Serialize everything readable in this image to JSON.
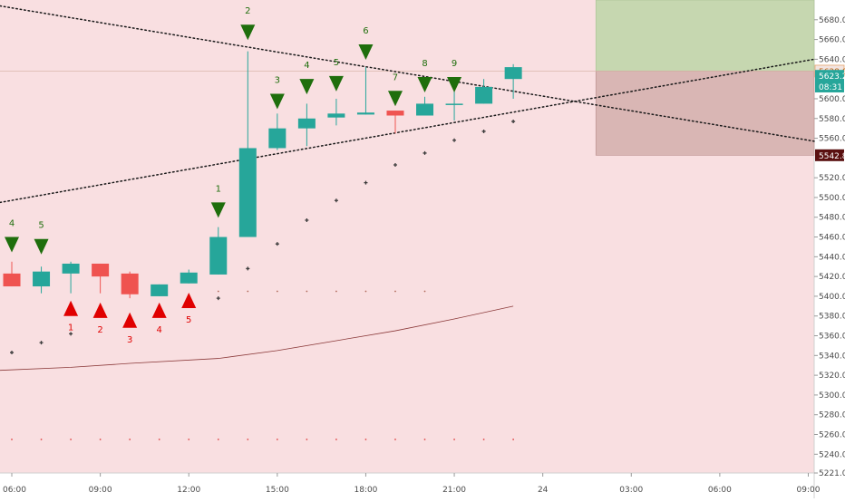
{
  "chart_data": {
    "type": "candlestick",
    "title": "",
    "xlabel": "",
    "ylabel": "",
    "colors": {
      "background": "#f9dfe1",
      "up": "#26a69a",
      "down": "#ef5350",
      "buy_zone": "#c6d7b0",
      "sell_zone": "#d9b6b4",
      "moving_average": "#8b3a3a",
      "trendline": "#1a1a1a",
      "sell_arrow": "#1f6e0c",
      "buy_arrow": "#e00000",
      "dot": "#3a3a3a"
    },
    "y_axis": {
      "range": [
        5221,
        5700
      ],
      "ticks": [
        "5680.0",
        "5660.0",
        "5640.0",
        "5600.0",
        "5580.0",
        "5560.0",
        "5520.0",
        "5500.0",
        "5480.0",
        "5460.0",
        "5440.0",
        "5420.0",
        "5400.0",
        "5380.0",
        "5360.0",
        "5340.0",
        "5320.0",
        "5300.0",
        "5280.0",
        "5260.0",
        "5240.0",
        "5221.0"
      ],
      "tick_values": [
        5680,
        5660,
        5640,
        5600,
        5580,
        5560,
        5520,
        5500,
        5480,
        5460,
        5440,
        5420,
        5400,
        5380,
        5360,
        5340,
        5320,
        5300,
        5280,
        5260,
        5240,
        5221
      ]
    },
    "x_axis": {
      "range": [
        5.6,
        33.2
      ],
      "ticks": [
        "06:00",
        "09:00",
        "12:00",
        "15:00",
        "18:00",
        "21:00",
        "24",
        "03:00",
        "06:00",
        "09:00"
      ],
      "tick_values": [
        6,
        9,
        12,
        15,
        18,
        21,
        24,
        27,
        30,
        33
      ]
    },
    "candles": [
      {
        "t": 6,
        "open": 5423,
        "high": 5435,
        "low": 5410,
        "close": 5410
      },
      {
        "t": 7,
        "open": 5410,
        "high": 5430,
        "low": 5403,
        "close": 5425
      },
      {
        "t": 8,
        "open": 5423,
        "high": 5435,
        "low": 5403,
        "close": 5433
      },
      {
        "t": 9,
        "open": 5433,
        "high": 5433,
        "low": 5403,
        "close": 5420
      },
      {
        "t": 10,
        "open": 5423,
        "high": 5425,
        "low": 5398,
        "close": 5402
      },
      {
        "t": 11,
        "open": 5400,
        "high": 5412,
        "low": 5400,
        "close": 5412
      },
      {
        "t": 12,
        "open": 5413,
        "high": 5427,
        "low": 5413,
        "close": 5424
      },
      {
        "t": 13,
        "open": 5422,
        "high": 5470,
        "low": 5422,
        "close": 5460
      },
      {
        "t": 14,
        "open": 5460,
        "high": 5648,
        "low": 5460,
        "close": 5550
      },
      {
        "t": 15,
        "open": 5550,
        "high": 5585,
        "low": 5548,
        "close": 5570
      },
      {
        "t": 16,
        "open": 5570,
        "high": 5595,
        "low": 5552,
        "close": 5580
      },
      {
        "t": 17,
        "open": 5581,
        "high": 5600,
        "low": 5573,
        "close": 5585
      },
      {
        "t": 18,
        "open": 5584,
        "high": 5632,
        "low": 5584,
        "close": 5586
      },
      {
        "t": 19,
        "open": 5588,
        "high": 5588,
        "low": 5565,
        "close": 5583
      },
      {
        "t": 20,
        "open": 5583,
        "high": 5602,
        "low": 5583,
        "close": 5595
      },
      {
        "t": 21,
        "open": 5594,
        "high": 5613,
        "low": 5578,
        "close": 5595
      },
      {
        "t": 22,
        "open": 5595,
        "high": 5620,
        "low": 5595,
        "close": 5612
      },
      {
        "t": 23,
        "open": 5620,
        "high": 5635,
        "low": 5600,
        "close": 5632
      }
    ],
    "sell_signals": [
      {
        "t": 6,
        "label": "4",
        "y": 5460
      },
      {
        "t": 7,
        "label": "5",
        "y": 5458
      },
      {
        "t": 13,
        "label": "1",
        "y": 5495
      },
      {
        "t": 14,
        "label": "2",
        "y": 5675
      },
      {
        "t": 15,
        "label": "3",
        "y": 5605
      },
      {
        "t": 16,
        "label": "4",
        "y": 5620
      },
      {
        "t": 17,
        "label": "5",
        "y": 5623
      },
      {
        "t": 18,
        "label": "6",
        "y": 5655
      },
      {
        "t": 19,
        "label": "7",
        "y": 5608
      },
      {
        "t": 20,
        "label": "8",
        "y": 5622
      },
      {
        "t": 21,
        "label": "9",
        "y": 5622
      }
    ],
    "buy_signals": [
      {
        "t": 8,
        "label": "1",
        "y": 5380
      },
      {
        "t": 9,
        "label": "2",
        "y": 5378
      },
      {
        "t": 10,
        "label": "3",
        "y": 5368
      },
      {
        "t": 11,
        "label": "4",
        "y": 5378
      },
      {
        "t": 12,
        "label": "5",
        "y": 5388
      }
    ],
    "dots": [
      {
        "t": 6,
        "y": 5343
      },
      {
        "t": 7,
        "y": 5353
      },
      {
        "t": 8,
        "y": 5362
      },
      {
        "t": 10,
        "y": 5377
      },
      {
        "t": 11,
        "y": 5383
      },
      {
        "t": 12,
        "y": 5390
      },
      {
        "t": 13,
        "y": 5398
      },
      {
        "t": 14,
        "y": 5428
      },
      {
        "t": 15,
        "y": 5453
      },
      {
        "t": 16,
        "y": 5477
      },
      {
        "t": 17,
        "y": 5497
      },
      {
        "t": 18,
        "y": 5515
      },
      {
        "t": 19,
        "y": 5533
      },
      {
        "t": 20,
        "y": 5545
      },
      {
        "t": 21,
        "y": 5558
      },
      {
        "t": 22,
        "y": 5567
      },
      {
        "t": 23,
        "y": 5577
      }
    ],
    "bottom_dots": [
      6,
      7,
      8,
      9,
      10,
      11,
      12,
      13,
      14,
      15,
      16,
      17,
      18,
      19,
      20,
      21,
      22,
      23
    ],
    "bottom_dots_y": 5255,
    "mid_dots": [
      13,
      14,
      15,
      16,
      17,
      18,
      19,
      20
    ],
    "mid_dots_y": 5405,
    "moving_average": [
      {
        "t": 5.6,
        "y": 5325
      },
      {
        "t": 8,
        "y": 5328
      },
      {
        "t": 10,
        "y": 5332
      },
      {
        "t": 13,
        "y": 5337
      },
      {
        "t": 15,
        "y": 5345
      },
      {
        "t": 17,
        "y": 5355
      },
      {
        "t": 19,
        "y": 5365
      },
      {
        "t": 21,
        "y": 5377
      },
      {
        "t": 23,
        "y": 5390
      }
    ],
    "trendlines": [
      {
        "from": {
          "t": 5.6,
          "y": 5694
        },
        "to": {
          "t": 33.2,
          "y": 5557
        }
      },
      {
        "from": {
          "t": 5.6,
          "y": 5495
        },
        "to": {
          "t": 33.2,
          "y": 5640
        }
      }
    ],
    "zones": [
      {
        "kind": "target",
        "t0": 25.8,
        "t1": 33.2,
        "y0": 5628,
        "y1": 5700
      },
      {
        "kind": "stop",
        "t0": 25.8,
        "t1": 33.2,
        "y0": 5542.8,
        "y1": 5628
      }
    ],
    "price_tags": [
      {
        "value": 5628.0,
        "label": "5628.0",
        "bg": "#f2e4e0",
        "fg": "#c45e0a",
        "border": "#e6a56b"
      },
      {
        "value": 5623.2,
        "label": "5623.2",
        "bg": "#26a69a",
        "fg": "#ffffff"
      },
      {
        "value": 5612.4,
        "label": "08:31",
        "bg": "#26a69a",
        "fg": "#ffffff"
      },
      {
        "value": 5542.8,
        "label": "5542.8",
        "bg": "#5a1010",
        "fg": "#ffffff"
      }
    ]
  }
}
